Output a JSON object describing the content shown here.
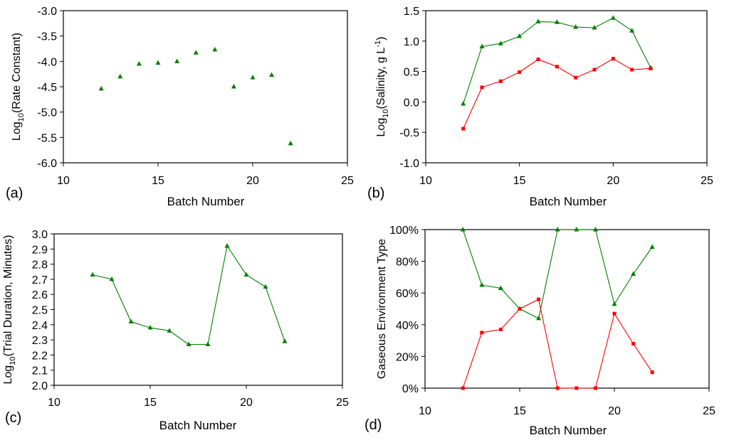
{
  "chart_data": [
    {
      "panel": "(a)",
      "type": "scatter",
      "xlabel": "Batch Number",
      "ylabel": "Log10(Rate Constant)",
      "ylabel_base": "Log",
      "ylabel_sub": "10",
      "ylabel_rest": "(Rate Constant)",
      "xlim": [
        10,
        25
      ],
      "xticks": [
        10,
        15,
        20,
        25
      ],
      "xtick_labels": [
        "10",
        "15",
        "20",
        "25"
      ],
      "ylim": [
        -6.0,
        -3.0
      ],
      "yticks": [
        -6.0,
        -5.5,
        -5.0,
        -4.5,
        -4.0,
        -3.5,
        -3.0
      ],
      "ytick_labels": [
        "-6.0",
        "-5.5",
        "-5.0",
        "-4.5",
        "-4.0",
        "-3.5",
        "-3.0"
      ],
      "series": [
        {
          "name": "rate",
          "color": "#008000",
          "marker": "triangle",
          "line": false,
          "x": [
            12,
            13,
            14,
            15,
            16,
            17,
            18,
            19,
            20,
            21,
            22
          ],
          "y": [
            -4.54,
            -4.3,
            -4.05,
            -4.03,
            -4.0,
            -3.83,
            -3.77,
            -4.5,
            -4.32,
            -4.27,
            -5.62
          ]
        }
      ]
    },
    {
      "panel": "(b)",
      "type": "line",
      "xlabel": "Batch Number",
      "ylabel": "Log10(Salinity, g L-1)",
      "ylabel_base": "Log",
      "ylabel_sub": "10",
      "ylabel_rest": "(Salinity, g L",
      "ylabel_sup": "-1",
      "ylabel_end": ")",
      "xlim": [
        10,
        25
      ],
      "xticks": [
        10,
        15,
        20,
        25
      ],
      "xtick_labels": [
        "10",
        "15",
        "20",
        "25"
      ],
      "ylim": [
        -1.0,
        1.5
      ],
      "yticks": [
        -1.0,
        -0.5,
        0.0,
        0.5,
        1.0,
        1.5
      ],
      "ytick_labels": [
        "-1.0",
        "-0.5",
        "0.0",
        "0.5",
        "1.0",
        "1.5"
      ],
      "series": [
        {
          "name": "green",
          "color": "#008000",
          "marker": "triangle",
          "line": true,
          "x": [
            12,
            13,
            14,
            15,
            16,
            17,
            18,
            19,
            20,
            21,
            22
          ],
          "y": [
            -0.03,
            0.91,
            0.96,
            1.08,
            1.32,
            1.31,
            1.23,
            1.22,
            1.38,
            1.17,
            0.56
          ]
        },
        {
          "name": "red",
          "color": "#ff0000",
          "marker": "square",
          "line": true,
          "x": [
            12,
            13,
            14,
            15,
            16,
            17,
            18,
            19,
            20,
            21,
            22
          ],
          "y": [
            -0.44,
            0.24,
            0.34,
            0.49,
            0.7,
            0.58,
            0.4,
            0.53,
            0.71,
            0.53,
            0.55
          ]
        }
      ]
    },
    {
      "panel": "(c)",
      "type": "line",
      "xlabel": "Batch Number",
      "ylabel": "Log10(Trial Duration, Minutes)",
      "ylabel_base": "Log",
      "ylabel_sub": "10",
      "ylabel_rest": "(Trial Duration, Minutes)",
      "xlim": [
        10,
        25
      ],
      "xticks": [
        10,
        15,
        20,
        25
      ],
      "xtick_labels": [
        "10",
        "15",
        "20",
        "25"
      ],
      "ylim": [
        2.0,
        3.0
      ],
      "yticks": [
        2.0,
        2.1,
        2.2,
        2.3,
        2.4,
        2.5,
        2.6,
        2.7,
        2.8,
        2.9,
        3.0
      ],
      "ytick_labels": [
        "2.0",
        "2.1",
        "2.2",
        "2.3",
        "2.4",
        "2.5",
        "2.6",
        "2.7",
        "2.8",
        "2.9",
        "3.0"
      ],
      "series": [
        {
          "name": "duration",
          "color": "#008000",
          "marker": "triangle",
          "line": true,
          "x": [
            12,
            13,
            14,
            15,
            16,
            17,
            18,
            19,
            20,
            21,
            22
          ],
          "y": [
            2.73,
            2.7,
            2.42,
            2.38,
            2.36,
            2.27,
            2.27,
            2.92,
            2.73,
            2.65,
            2.29
          ]
        }
      ]
    },
    {
      "panel": "(d)",
      "type": "line",
      "xlabel": "Batch Number",
      "ylabel": "Gaseous Environment Type",
      "xlim": [
        10,
        25
      ],
      "xticks": [
        10,
        15,
        20,
        25
      ],
      "xtick_labels": [
        "10",
        "15",
        "20",
        "25"
      ],
      "ylim": [
        0,
        100
      ],
      "yticks": [
        0,
        20,
        40,
        60,
        80,
        100
      ],
      "ytick_labels": [
        "0%",
        "20%",
        "40%",
        "60%",
        "80%",
        "100%"
      ],
      "series": [
        {
          "name": "green",
          "color": "#008000",
          "marker": "triangle",
          "line": true,
          "x": [
            12,
            13,
            14,
            15,
            16,
            17,
            18,
            19,
            20,
            21,
            22
          ],
          "y": [
            100,
            65,
            63,
            50,
            44,
            100,
            100,
            100,
            53,
            72,
            89
          ]
        },
        {
          "name": "red",
          "color": "#ff0000",
          "marker": "square",
          "line": true,
          "x": [
            12,
            13,
            14,
            15,
            16,
            17,
            18,
            19,
            20,
            21,
            22
          ],
          "y": [
            0,
            35,
            37,
            50,
            56,
            0,
            0,
            0,
            47,
            28,
            10
          ]
        }
      ]
    }
  ]
}
